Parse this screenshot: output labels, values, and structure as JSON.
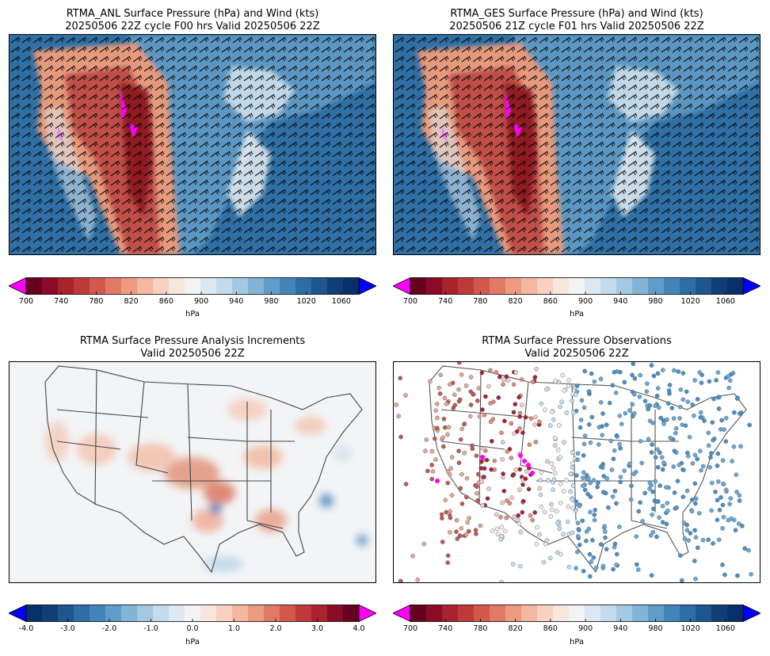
{
  "panels": [
    {
      "title_line1": "RTMA_ANL Surface Pressure (hPa) and Wind (kts)",
      "title_line2": "20250506 22Z cycle F00 hrs Valid 20250506 22Z",
      "colorbar": {
        "ticks": [
          "700",
          "740",
          "780",
          "820",
          "860",
          "900",
          "940",
          "980",
          "1020",
          "1060"
        ],
        "units": "hPa",
        "low_extend_color": "#ff00ff",
        "high_extend_color": "#0000ff"
      }
    },
    {
      "title_line1": "RTMA_GES Surface Pressure (hPa) and Wind (kts)",
      "title_line2": "20250506 21Z cycle F01 hrs Valid 20250506 22Z",
      "colorbar": {
        "ticks": [
          "700",
          "740",
          "780",
          "820",
          "860",
          "900",
          "940",
          "980",
          "1020",
          "1060"
        ],
        "units": "hPa",
        "low_extend_color": "#ff00ff",
        "high_extend_color": "#0000ff"
      }
    },
    {
      "title_line1": "RTMA Surface Pressure Analysis Increments",
      "title_line2": "Valid 20250506 22Z",
      "colorbar": {
        "ticks": [
          "-4.0",
          "-3.0",
          "-2.0",
          "-1.0",
          "0.0",
          "1.0",
          "2.0",
          "3.0",
          "4.0"
        ],
        "units": "hPa",
        "low_extend_color": "#0000ff",
        "high_extend_color": "#ff00ff"
      }
    },
    {
      "title_line1": "RTMA Surface Pressure Observations",
      "title_line2": "Valid 20250506 22Z",
      "colorbar": {
        "ticks": [
          "700",
          "740",
          "780",
          "820",
          "860",
          "900",
          "940",
          "980",
          "1020",
          "1060"
        ],
        "units": "hPa",
        "low_extend_color": "#ff00ff",
        "high_extend_color": "#0000ff"
      }
    }
  ]
}
